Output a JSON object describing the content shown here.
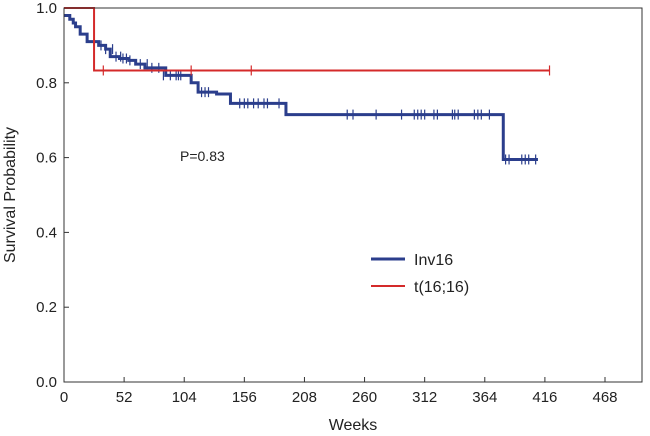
{
  "chart_data": {
    "type": "line",
    "title": "",
    "xlabel": "Weeks",
    "ylabel": "Survival Probability",
    "xlim": [
      0,
      500
    ],
    "ylim": [
      0,
      1.0
    ],
    "x_ticks": [
      0,
      52,
      104,
      156,
      208,
      260,
      312,
      364,
      416,
      468
    ],
    "y_ticks": [
      0.0,
      0.2,
      0.4,
      0.6,
      0.8,
      1.0
    ],
    "x_tick_labels": [
      "0",
      "52",
      "104",
      "156",
      "208",
      "260",
      "312",
      "364",
      "416",
      "468"
    ],
    "y_tick_labels": [
      "0.0",
      "0.2",
      "0.4",
      "0.6",
      "0.8",
      "1.0"
    ],
    "grid": false,
    "legend_position": "center-right",
    "annotation": "P=0.83",
    "series": [
      {
        "name": "Inv16",
        "color": "#2b3e8c",
        "step_x": [
          0,
          5,
          8,
          10,
          14,
          20,
          30,
          36,
          40,
          48,
          56,
          62,
          70,
          88,
          110,
          116,
          132,
          144,
          162,
          192,
          376,
          380
        ],
        "step_y": [
          0.98,
          0.97,
          0.96,
          0.95,
          0.93,
          0.91,
          0.9,
          0.89,
          0.87,
          0.865,
          0.86,
          0.85,
          0.84,
          0.82,
          0.8,
          0.775,
          0.77,
          0.745,
          0.745,
          0.715,
          0.715,
          0.595
        ],
        "end_x": 410,
        "censored_x": [
          26,
          32,
          36,
          42,
          45,
          49,
          51,
          54,
          57,
          66,
          72,
          76,
          82,
          86,
          92,
          97,
          99,
          101,
          119,
          122,
          125,
          152,
          156,
          159,
          164,
          168,
          173,
          176,
          186,
          245,
          250,
          270,
          292,
          303,
          306,
          309,
          312,
          320,
          323,
          336,
          338,
          341,
          355,
          358,
          361,
          368,
          382,
          385,
          396,
          399,
          402,
          408
        ],
        "censored_y": [
          0.91,
          0.9,
          0.89,
          0.89,
          0.87,
          0.87,
          0.865,
          0.865,
          0.86,
          0.85,
          0.85,
          0.84,
          0.84,
          0.82,
          0.82,
          0.82,
          0.82,
          0.82,
          0.775,
          0.775,
          0.775,
          0.745,
          0.745,
          0.745,
          0.745,
          0.745,
          0.745,
          0.745,
          0.745,
          0.715,
          0.715,
          0.715,
          0.715,
          0.715,
          0.715,
          0.715,
          0.715,
          0.715,
          0.715,
          0.715,
          0.715,
          0.715,
          0.715,
          0.715,
          0.715,
          0.715,
          0.595,
          0.595,
          0.595,
          0.595,
          0.595,
          0.595
        ]
      },
      {
        "name": "t(16;16)",
        "color": "#d42a2a",
        "step_x": [
          0,
          26
        ],
        "step_y": [
          1.0,
          0.833
        ],
        "end_x": 420,
        "censored_x": [
          34,
          110,
          162,
          420
        ],
        "censored_y": [
          0.833,
          0.833,
          0.833,
          0.833
        ]
      }
    ]
  }
}
